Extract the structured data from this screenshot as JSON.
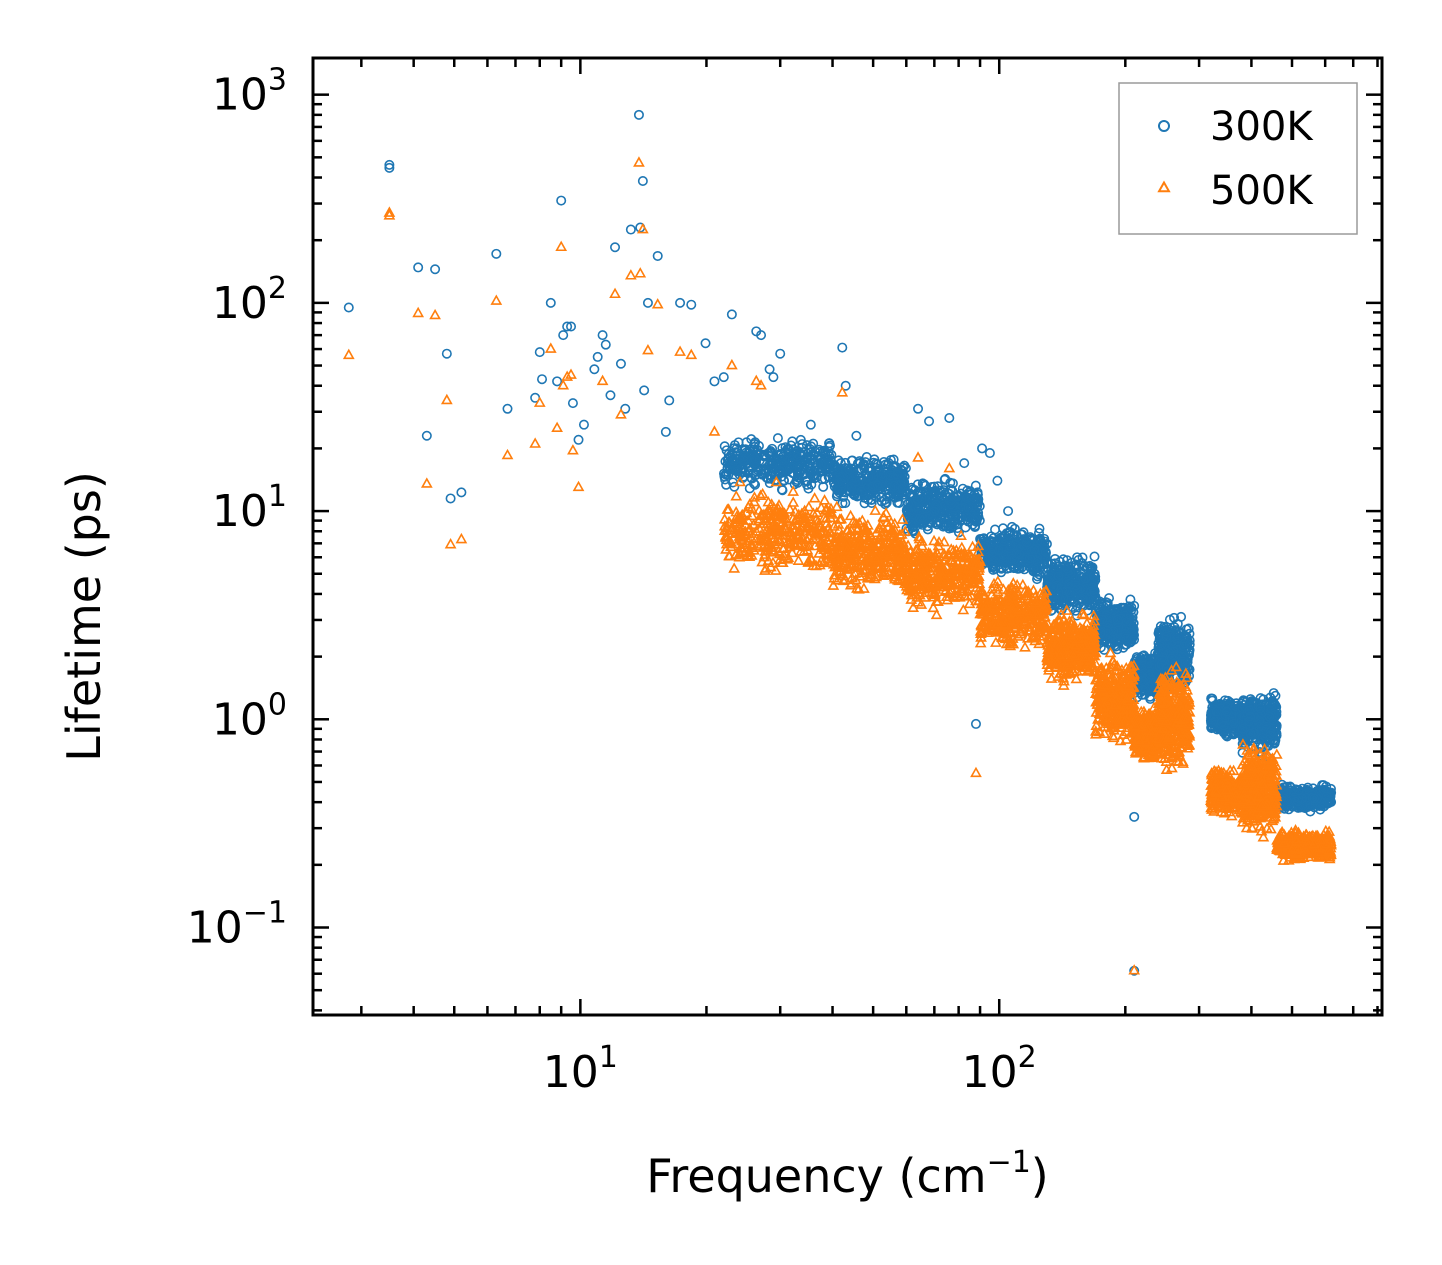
{
  "chart_data": {
    "type": "scatter",
    "title": "",
    "xlabel": "Frequency (cm",
    "xlabel_sup": "−1",
    "xlabel_suffix": ")",
    "ylabel": "Lifetime (ps)",
    "xscale": "log",
    "yscale": "log",
    "xlim": [
      2.3,
      820
    ],
    "ylim": [
      0.038,
      1500
    ],
    "legend_position": "top-right",
    "x_ticks": [
      {
        "value": 10,
        "base": "10",
        "exp": "1"
      },
      {
        "value": 100,
        "base": "10",
        "exp": "2"
      }
    ],
    "y_ticks": [
      {
        "value": 0.1,
        "base": "10",
        "exp": "−1"
      },
      {
        "value": 1,
        "base": "10",
        "exp": "0"
      },
      {
        "value": 10,
        "base": "10",
        "exp": "1"
      },
      {
        "value": 100,
        "base": "10",
        "exp": "2"
      },
      {
        "value": 1000,
        "base": "10",
        "exp": "3"
      }
    ],
    "series": [
      {
        "name": "300K",
        "color": "#1f77b4",
        "marker": "circle",
        "points": [
          [
            2.8,
            95
          ],
          [
            3.5,
            460
          ],
          [
            3.5,
            445
          ],
          [
            4.1,
            148
          ],
          [
            4.3,
            23
          ],
          [
            4.5,
            145
          ],
          [
            4.8,
            57
          ],
          [
            4.9,
            11.5
          ],
          [
            5.2,
            12.3
          ],
          [
            6.3,
            172
          ],
          [
            6.7,
            31
          ],
          [
            7.8,
            35
          ],
          [
            8.0,
            58
          ],
          [
            8.1,
            43
          ],
          [
            8.5,
            100
          ],
          [
            8.8,
            42
          ],
          [
            9.0,
            310
          ],
          [
            9.1,
            70
          ],
          [
            9.3,
            77
          ],
          [
            9.5,
            77
          ],
          [
            9.6,
            33
          ],
          [
            9.9,
            22
          ],
          [
            10.2,
            26
          ],
          [
            10.8,
            48
          ],
          [
            11.0,
            55
          ],
          [
            11.3,
            70
          ],
          [
            11.5,
            63
          ],
          [
            11.8,
            36
          ],
          [
            12.1,
            185
          ],
          [
            12.5,
            51
          ],
          [
            12.8,
            31
          ],
          [
            13.2,
            225
          ],
          [
            13.8,
            800
          ],
          [
            13.9,
            230
          ],
          [
            14.1,
            385
          ],
          [
            14.2,
            38
          ],
          [
            14.5,
            100
          ],
          [
            15.3,
            168
          ],
          [
            16.0,
            24
          ],
          [
            16.3,
            34
          ],
          [
            17.3,
            100
          ],
          [
            18.4,
            98
          ],
          [
            19.9,
            64
          ],
          [
            20.9,
            42
          ],
          [
            22.0,
            44
          ],
          [
            23.0,
            88
          ],
          [
            26.3,
            73
          ],
          [
            27.0,
            70
          ],
          [
            28.3,
            48
          ],
          [
            28.9,
            44
          ],
          [
            30.0,
            57
          ],
          [
            35.5,
            26
          ],
          [
            42.2,
            61
          ],
          [
            43.0,
            40
          ],
          [
            45.6,
            23
          ],
          [
            64.0,
            31
          ],
          [
            68.0,
            27
          ],
          [
            76.0,
            28
          ],
          [
            82.5,
            17
          ],
          [
            88.0,
            0.95
          ],
          [
            91.0,
            20
          ],
          [
            95.0,
            19
          ],
          [
            99.0,
            14
          ],
          [
            105.0,
            10
          ],
          [
            210.0,
            0.34
          ],
          [
            210.0,
            0.062
          ]
        ],
        "bands": [
          {
            "from": 22,
            "to": 40,
            "low": 12,
            "high": 24
          },
          {
            "from": 40,
            "to": 60,
            "low": 10,
            "high": 19
          },
          {
            "from": 60,
            "to": 90,
            "low": 7,
            "high": 15
          },
          {
            "from": 90,
            "to": 130,
            "low": 4.5,
            "high": 9
          },
          {
            "from": 130,
            "to": 170,
            "low": 3,
            "high": 6.5
          },
          {
            "from": 170,
            "to": 210,
            "low": 2,
            "high": 4
          },
          {
            "from": 210,
            "to": 240,
            "low": 1.2,
            "high": 2.2
          },
          {
            "from": 240,
            "to": 285,
            "low": 1.3,
            "high": 3.3
          },
          {
            "from": 320,
            "to": 380,
            "low": 0.8,
            "high": 1.3
          },
          {
            "from": 380,
            "to": 460,
            "low": 0.65,
            "high": 1.4
          },
          {
            "from": 460,
            "to": 620,
            "low": 0.35,
            "high": 0.5
          }
        ]
      },
      {
        "name": "500K",
        "color": "#ff7f0e",
        "marker": "triangle",
        "points": [
          [
            2.8,
            56
          ],
          [
            3.5,
            270
          ],
          [
            3.5,
            262
          ],
          [
            4.1,
            89
          ],
          [
            4.3,
            13.5
          ],
          [
            4.5,
            87
          ],
          [
            4.8,
            34
          ],
          [
            4.9,
            6.9
          ],
          [
            5.2,
            7.3
          ],
          [
            6.3,
            102
          ],
          [
            6.7,
            18.5
          ],
          [
            7.8,
            21
          ],
          [
            8.0,
            33
          ],
          [
            8.5,
            60
          ],
          [
            8.8,
            25
          ],
          [
            9.0,
            185
          ],
          [
            9.1,
            40
          ],
          [
            9.3,
            44
          ],
          [
            9.5,
            45
          ],
          [
            9.6,
            19.5
          ],
          [
            9.9,
            13
          ],
          [
            11.3,
            42
          ],
          [
            12.1,
            110
          ],
          [
            12.5,
            29
          ],
          [
            13.2,
            135
          ],
          [
            13.8,
            470
          ],
          [
            13.9,
            138
          ],
          [
            14.1,
            225
          ],
          [
            14.5,
            59
          ],
          [
            15.3,
            98
          ],
          [
            17.3,
            58
          ],
          [
            18.4,
            56
          ],
          [
            20.9,
            24
          ],
          [
            23.0,
            50
          ],
          [
            26.3,
            42
          ],
          [
            27.0,
            40
          ],
          [
            42.2,
            37
          ],
          [
            64.0,
            18
          ],
          [
            76.0,
            16
          ],
          [
            88.0,
            0.55
          ],
          [
            210.0,
            0.062
          ]
        ],
        "bands": [
          {
            "from": 22,
            "to": 40,
            "low": 4.5,
            "high": 14
          },
          {
            "from": 40,
            "to": 60,
            "low": 3.8,
            "high": 11
          },
          {
            "from": 60,
            "to": 90,
            "low": 3,
            "high": 8
          },
          {
            "from": 90,
            "to": 130,
            "low": 2,
            "high": 5
          },
          {
            "from": 130,
            "to": 170,
            "low": 1.4,
            "high": 3.5
          },
          {
            "from": 170,
            "to": 210,
            "low": 0.7,
            "high": 2.2
          },
          {
            "from": 210,
            "to": 240,
            "low": 0.6,
            "high": 1.2
          },
          {
            "from": 240,
            "to": 285,
            "low": 0.5,
            "high": 2
          },
          {
            "from": 320,
            "to": 380,
            "low": 0.33,
            "high": 0.6
          },
          {
            "from": 380,
            "to": 460,
            "low": 0.25,
            "high": 0.85
          },
          {
            "from": 460,
            "to": 620,
            "low": 0.2,
            "high": 0.3
          }
        ]
      }
    ]
  }
}
